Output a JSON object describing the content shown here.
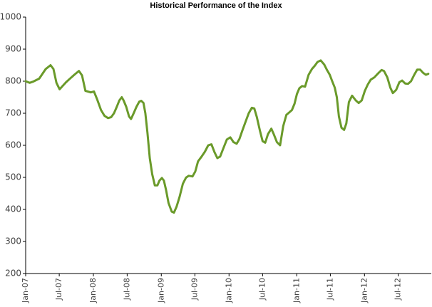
{
  "chart_data": {
    "type": "line",
    "title": "Historical Performance of the Index",
    "xlabel": "",
    "ylabel": "",
    "ylim": [
      200,
      1000
    ],
    "yticks": [
      200,
      300,
      400,
      500,
      600,
      700,
      800,
      900,
      1000
    ],
    "xlim": [
      "2007-01",
      "2012-12"
    ],
    "xtick_labels": [
      "Jan-07",
      "Jul-07",
      "Jan-08",
      "Jul-08",
      "Jan-09",
      "Jul-09",
      "Jan-10",
      "Jul-10",
      "Jan-11",
      "Jul-11",
      "Jan-12",
      "Jul-12"
    ],
    "grid": false,
    "legend": "none",
    "line_color": "#6a9a2a",
    "x": [
      "2007-01-01",
      "2007-01-22",
      "2007-02-12",
      "2007-03-15",
      "2007-04-19",
      "2007-05-15",
      "2007-05-31",
      "2007-06-16",
      "2007-07-03",
      "2007-07-16",
      "2007-08-07",
      "2007-08-26",
      "2007-09-20",
      "2007-10-15",
      "2007-11-01",
      "2007-11-19",
      "2007-12-18",
      "2008-01-04",
      "2008-01-20",
      "2008-02-11",
      "2008-03-01",
      "2008-03-20",
      "2008-04-06",
      "2008-04-21",
      "2008-05-06",
      "2008-05-20",
      "2008-06-02",
      "2008-06-12",
      "2008-06-26",
      "2008-07-11",
      "2008-07-22",
      "2008-08-05",
      "2008-08-20",
      "2008-09-04",
      "2008-09-15",
      "2008-09-27",
      "2008-10-07",
      "2008-10-18",
      "2008-10-31",
      "2008-11-13",
      "2008-11-27",
      "2008-12-11",
      "2008-12-22",
      "2009-01-04",
      "2009-01-15",
      "2009-01-27",
      "2009-02-09",
      "2009-02-26",
      "2009-03-10",
      "2009-03-24",
      "2009-04-10",
      "2009-04-27",
      "2009-05-14",
      "2009-05-29",
      "2009-06-18",
      "2009-07-03",
      "2009-07-18",
      "2009-08-06",
      "2009-08-24",
      "2009-09-11",
      "2009-09-28",
      "2009-10-15",
      "2009-10-30",
      "2009-11-14",
      "2009-12-01",
      "2009-12-20",
      "2010-01-08",
      "2010-01-25",
      "2010-02-11",
      "2010-02-26",
      "2010-03-13",
      "2010-03-29",
      "2010-04-17",
      "2010-05-04",
      "2010-05-17",
      "2010-05-31",
      "2010-06-17",
      "2010-07-01",
      "2010-07-15",
      "2010-07-30",
      "2010-08-17",
      "2010-08-30",
      "2010-09-16",
      "2010-10-03",
      "2010-10-20",
      "2010-11-06",
      "2010-11-20",
      "2010-12-06",
      "2010-12-20",
      "2011-01-02",
      "2011-01-15",
      "2011-01-30",
      "2011-02-15",
      "2011-03-06",
      "2011-03-24",
      "2011-04-08",
      "2011-04-23",
      "2011-05-10",
      "2011-05-29",
      "2011-06-13",
      "2011-06-28",
      "2011-07-11",
      "2011-07-25",
      "2011-08-05",
      "2011-08-16",
      "2011-08-30",
      "2011-09-13",
      "2011-09-25",
      "2011-10-09",
      "2011-10-26",
      "2011-11-15",
      "2011-12-01",
      "2011-12-17",
      "2012-01-03",
      "2012-01-19",
      "2012-02-04",
      "2012-02-23",
      "2012-03-15",
      "2012-04-02",
      "2012-04-15",
      "2012-05-03",
      "2012-05-19",
      "2012-06-02",
      "2012-06-20",
      "2012-07-07",
      "2012-07-22",
      "2012-08-07",
      "2012-08-23",
      "2012-09-08",
      "2012-09-25",
      "2012-10-11",
      "2012-10-27",
      "2012-11-12",
      "2012-11-27",
      "2012-12-10"
    ],
    "values": [
      800,
      795,
      799,
      808,
      838,
      850,
      838,
      795,
      775,
      783,
      797,
      807,
      820,
      832,
      818,
      770,
      765,
      768,
      745,
      710,
      692,
      685,
      688,
      700,
      720,
      740,
      750,
      740,
      720,
      690,
      682,
      700,
      720,
      736,
      739,
      732,
      700,
      640,
      560,
      510,
      475,
      475,
      490,
      498,
      490,
      460,
      420,
      393,
      390,
      408,
      440,
      480,
      499,
      505,
      503,
      518,
      550,
      565,
      580,
      600,
      603,
      578,
      560,
      565,
      590,
      618,
      625,
      610,
      605,
      620,
      645,
      670,
      700,
      717,
      715,
      688,
      645,
      613,
      608,
      635,
      652,
      635,
      610,
      600,
      660,
      695,
      702,
      710,
      730,
      760,
      778,
      785,
      783,
      820,
      838,
      848,
      860,
      865,
      852,
      835,
      820,
      800,
      780,
      750,
      690,
      655,
      648,
      668,
      735,
      755,
      740,
      732,
      740,
      770,
      790,
      805,
      812,
      825,
      835,
      832,
      812,
      780,
      763,
      773,
      797,
      802,
      793,
      792,
      800,
      820,
      836,
      836,
      826,
      820,
      823
    ]
  }
}
